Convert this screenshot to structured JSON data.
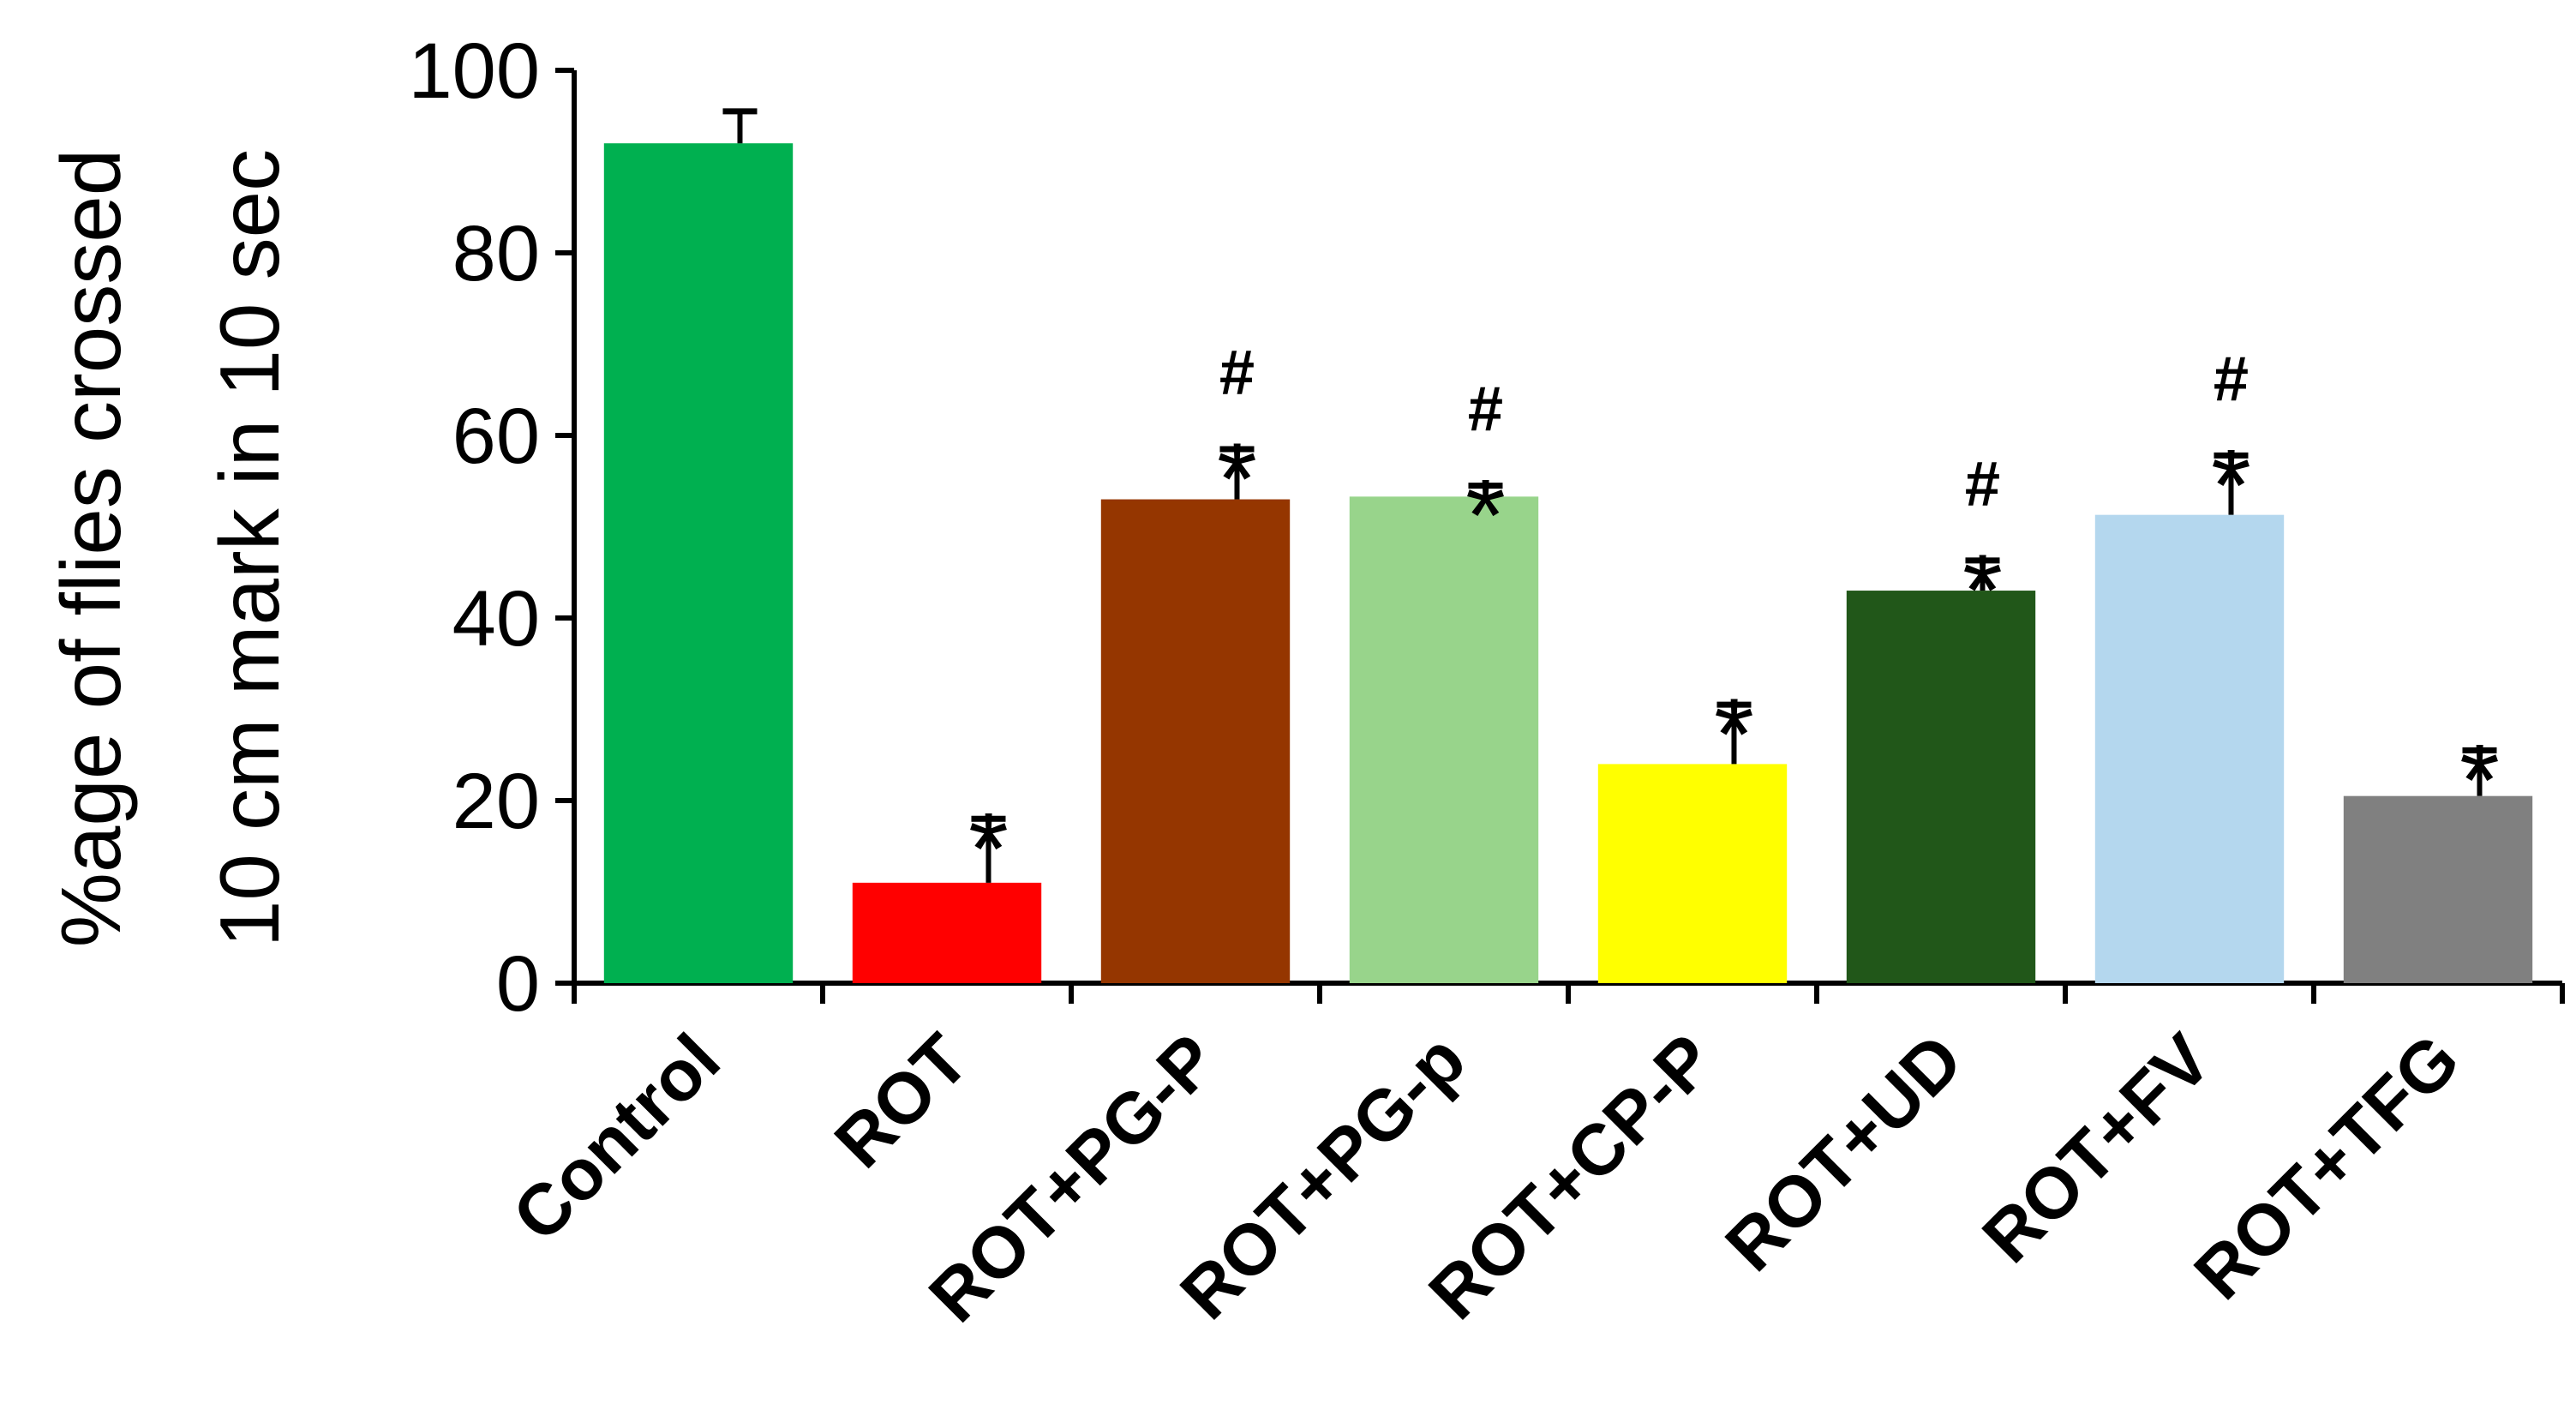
{
  "chart_data": {
    "type": "bar",
    "ylabel": [
      "%age of flies crossed",
      "10 cm mark in 10 sec"
    ],
    "xlabel": "",
    "ylim": [
      0,
      100
    ],
    "yticks": [
      0,
      20,
      40,
      60,
      80,
      100
    ],
    "categories": [
      "Control",
      "ROT",
      "ROT+PG-P",
      "ROT+PG-p",
      "ROT+CP-P",
      "ROT+UD",
      "ROT+FV",
      "ROT+TFG"
    ],
    "values": [
      92,
      11,
      53,
      53.3,
      24,
      43,
      51.3,
      20.5
    ],
    "errors": [
      3.5,
      7,
      5.5,
      1.2,
      6.5,
      3.3,
      6.5,
      5
    ],
    "colors": [
      "#00b050",
      "#ff0000",
      "#953600",
      "#98d48b",
      "#ffff00",
      "#215719",
      "#b4d7ee",
      "#808080"
    ],
    "significance": [
      "",
      "*",
      "*#",
      "*#",
      "*",
      "*#",
      "*#",
      "*"
    ]
  }
}
